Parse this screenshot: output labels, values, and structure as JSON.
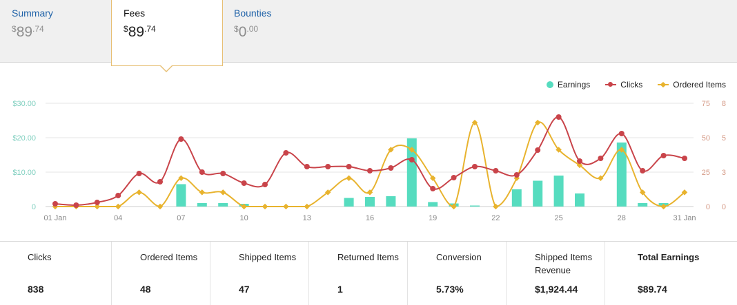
{
  "tabs": [
    {
      "label": "Summary",
      "currency": "$",
      "whole": "89",
      "cents": ".74"
    },
    {
      "label": "Fees",
      "currency": "$",
      "whole": "89",
      "cents": ".74"
    },
    {
      "label": "Bounties",
      "currency": "$",
      "whole": "0",
      "cents": ".00"
    }
  ],
  "legend": {
    "earnings": "Earnings",
    "clicks": "Clicks",
    "ordered": "Ordered Items"
  },
  "colors": {
    "earnings": "#56dcbf",
    "clicks": "#c9444a",
    "ordered": "#e8b32e",
    "axis_left": "#7fcfbf",
    "axis_right": "#d59a86"
  },
  "stats": [
    {
      "label": "Clicks",
      "value": "838"
    },
    {
      "label": "Ordered Items",
      "value": "48"
    },
    {
      "label": "Shipped Items",
      "value": "47"
    },
    {
      "label": "Returned Items",
      "value": "1"
    },
    {
      "label": "Conversion",
      "value": "5.73%"
    },
    {
      "label": "Shipped Items Revenue",
      "value": "$1,924.44"
    },
    {
      "label": "Total Earnings",
      "value": "$89.74"
    }
  ],
  "chart_data": {
    "type": "bar+line",
    "x": [
      "01",
      "02",
      "03",
      "04",
      "05",
      "06",
      "07",
      "08",
      "09",
      "10",
      "11",
      "12",
      "13",
      "14",
      "15",
      "16",
      "17",
      "18",
      "19",
      "20",
      "21",
      "22",
      "23",
      "24",
      "25",
      "26",
      "27",
      "28",
      "29",
      "30",
      "31"
    ],
    "x_tick_labels": [
      {
        "day": 1,
        "label": "01 Jan"
      },
      {
        "day": 4,
        "label": "04"
      },
      {
        "day": 7,
        "label": "07"
      },
      {
        "day": 10,
        "label": "10"
      },
      {
        "day": 13,
        "label": "13"
      },
      {
        "day": 16,
        "label": "16"
      },
      {
        "day": 19,
        "label": "19"
      },
      {
        "day": 22,
        "label": "22"
      },
      {
        "day": 25,
        "label": "25"
      },
      {
        "day": 28,
        "label": "28"
      },
      {
        "day": 31,
        "label": "31 Jan"
      }
    ],
    "axes": {
      "left": {
        "min": 0,
        "max": 30,
        "ticks": [
          "0",
          "$10.00",
          "$20.00",
          "$30.00"
        ]
      },
      "clicks": {
        "min": 0,
        "max": 75,
        "ticks": [
          "0",
          "25",
          "50",
          "75"
        ]
      },
      "ordered": {
        "min": 0,
        "max": 8,
        "ticks": [
          "0",
          "3",
          "5",
          "8"
        ]
      }
    },
    "series": [
      {
        "name": "Earnings",
        "axis": "left",
        "values": [
          0,
          0,
          0,
          0,
          0,
          0,
          6.5,
          1.0,
          1.0,
          0.8,
          0,
          0,
          0,
          0,
          2.5,
          2.8,
          3.0,
          19.8,
          1.3,
          0.9,
          0.3,
          0,
          5.0,
          7.5,
          9.0,
          3.8,
          0,
          18.6,
          1.0,
          1.0,
          0
        ],
        "values_note": "bars drawn at days listed in bar_days"
      },
      {
        "name": "Clicks",
        "axis": "clicks",
        "values": [
          2,
          1,
          3,
          8,
          24,
          18,
          49,
          25,
          24,
          17,
          16,
          39,
          29,
          29,
          29,
          26,
          28,
          34,
          13,
          21,
          29,
          26,
          23,
          41,
          65,
          33,
          35,
          53,
          26,
          37,
          35
        ]
      },
      {
        "name": "Ordered Items",
        "axis": "ordered",
        "values": [
          0,
          0,
          0,
          0,
          1.1,
          0,
          2.2,
          1.1,
          1.1,
          0,
          0,
          0,
          0,
          1.1,
          2.2,
          1.1,
          4.4,
          4.4,
          2.2,
          0,
          6.5,
          0,
          2.2,
          6.5,
          4.4,
          3.2,
          2.2,
          4.4,
          1.1,
          0,
          1.1
        ]
      }
    ],
    "bar_days": [
      7,
      8,
      9,
      10,
      15,
      16,
      17,
      18,
      19,
      20,
      21,
      23,
      24,
      25,
      26,
      28,
      29,
      30
    ],
    "bar_values": [
      6.5,
      1.0,
      1.0,
      0.8,
      2.5,
      2.8,
      3.0,
      19.8,
      1.3,
      0.9,
      0.3,
      5.0,
      7.5,
      9.0,
      3.8,
      18.6,
      1.0,
      1.0
    ],
    "grid": true,
    "legend_position": "top-right"
  }
}
